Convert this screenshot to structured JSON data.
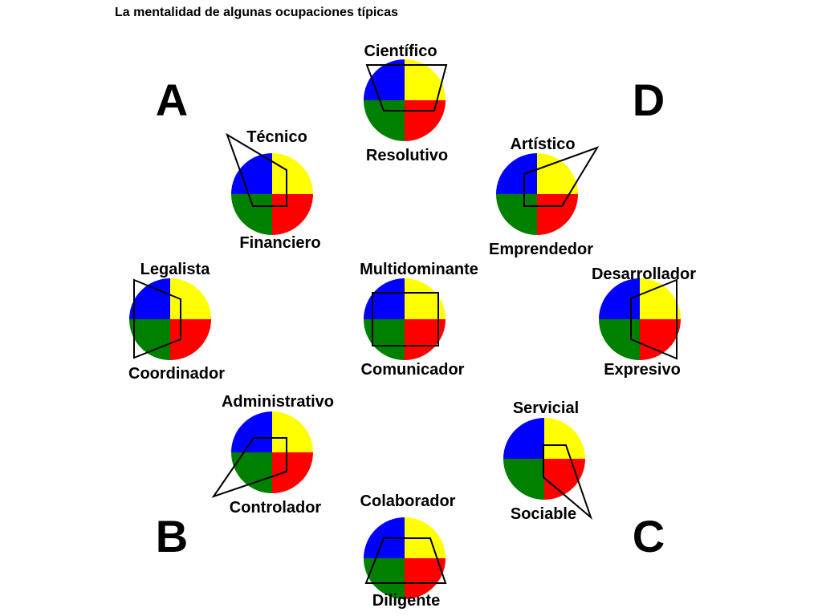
{
  "title": "La mentalidad de algunas ocupaciones típicas",
  "colors": {
    "blue": "#0000ff",
    "yellow": "#ffff00",
    "green": "#008000",
    "red": "#ff0000"
  },
  "quadrants": [
    "A",
    "D",
    "B",
    "C"
  ],
  "occupations": [
    {
      "top": "Científico",
      "bottom": "Resolutivo"
    },
    {
      "top": "Técnico",
      "bottom": "Financiero"
    },
    {
      "top": "Artístico",
      "bottom": "Emprendedor"
    },
    {
      "top": "Legalista",
      "bottom": "Coordinador"
    },
    {
      "top": "Multidominante",
      "bottom": "Comunicador"
    },
    {
      "top": "Desarrollador",
      "bottom": "Expresivo"
    },
    {
      "top": "Administrativo",
      "bottom": "Controlador"
    },
    {
      "top": "Servicial",
      "bottom": "Sociable"
    },
    {
      "top": "Colaborador",
      "bottom": "Diligente"
    }
  ]
}
